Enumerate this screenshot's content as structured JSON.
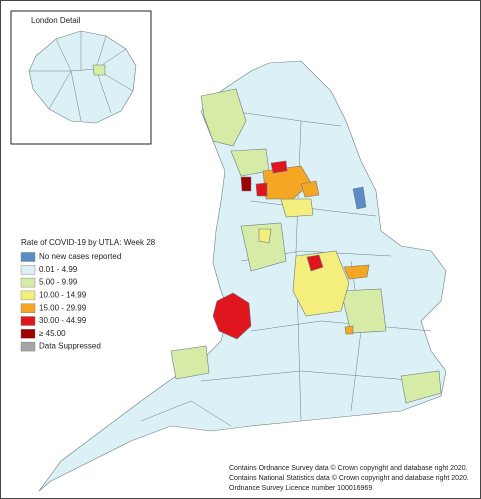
{
  "inset": {
    "title": "London Detail"
  },
  "legend": {
    "title": "Rate of COVID-19 by UTLA: Week 28",
    "items": [
      {
        "label": "No new cases reported",
        "color": "#5b8cc8"
      },
      {
        "label": "0.01 - 4.99",
        "color": "#dcf1f5"
      },
      {
        "label": "5.00 - 9.99",
        "color": "#d5eba6"
      },
      {
        "label": "10.00 - 14.99",
        "color": "#f4ee7c"
      },
      {
        "label": "15.00 - 29.99",
        "color": "#f5a623"
      },
      {
        "label": "30.00 - 44.99",
        "color": "#e0161e"
      },
      {
        "label": "≥ 45.00",
        "color": "#9e0000"
      },
      {
        "label": "Data Suppressed",
        "color": "#a6a6a6"
      }
    ]
  },
  "credits": [
    "Contains Ordnance Survey data © Crown copyright and database right 2020.",
    "Contains National Statistics data © Crown copyright and database right 2020.",
    "Ordnance Survey Licence number 100016969"
  ]
}
